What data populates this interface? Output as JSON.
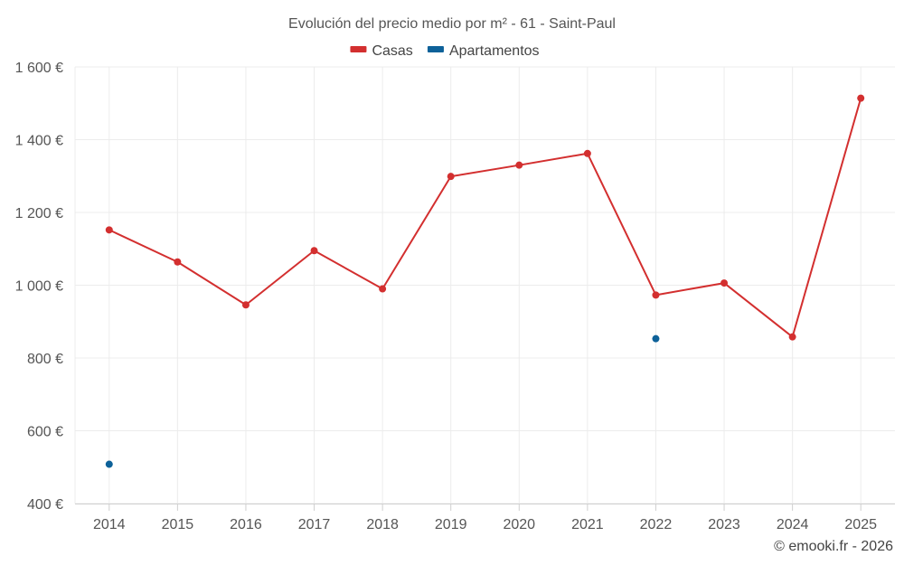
{
  "chart_data": {
    "type": "line",
    "title": "Evolución del precio medio por m² - 61 - Saint-Paul",
    "xlabel": "",
    "ylabel": "",
    "categories": [
      "2014",
      "2015",
      "2016",
      "2017",
      "2018",
      "2019",
      "2020",
      "2021",
      "2022",
      "2023",
      "2024",
      "2025"
    ],
    "ylim": [
      400,
      1600
    ],
    "yticks": [
      400,
      600,
      800,
      1000,
      1200,
      1400,
      1600
    ],
    "ytick_labels": [
      "400 €",
      "600 €",
      "800 €",
      "1 000 €",
      "1 200 €",
      "1 400 €",
      "1 600 €"
    ],
    "grid": true,
    "legend_position": "top-center",
    "series": [
      {
        "name": "Casas",
        "color": "#d32f2f",
        "values": [
          1152,
          1064,
          946,
          1095,
          990,
          1299,
          1330,
          1362,
          973,
          1006,
          858,
          1514
        ]
      },
      {
        "name": "Apartamentos",
        "color": "#0d6199",
        "values": [
          508,
          null,
          null,
          null,
          null,
          null,
          null,
          null,
          853,
          null,
          null,
          null
        ]
      }
    ]
  },
  "credit": "© emooki.fr - 2026"
}
